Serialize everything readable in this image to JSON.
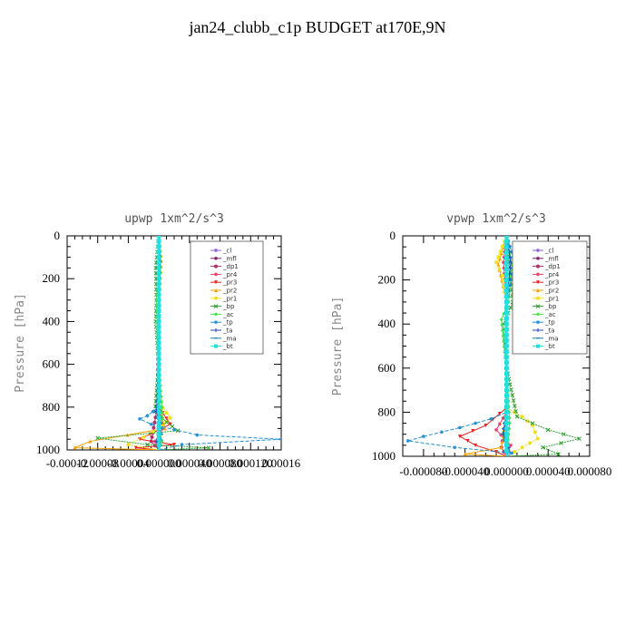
{
  "title": "jan24_clubb_c1p  BUDGET at170E,9N",
  "legend_entries": [
    "_cl",
    "_mfl",
    "_dp1",
    "_pr4",
    "_pr3",
    "_pr2",
    "_pr1",
    "_bp",
    "_ac",
    "_tp",
    "_ta",
    "_ma",
    "_bt"
  ],
  "colors": {
    "_cl": "#8a5fd0",
    "_mfl": "#7a1f6e",
    "_dp1": "#b0306a",
    "_pr4": "#e8406a",
    "_pr3": "#e82020",
    "_pr2": "#f4a000",
    "_pr1": "#f2e020",
    "_bp": "#30a030",
    "_ac": "#40e040",
    "_tp": "#2090d0",
    "_ta": "#2040c0",
    "_ma": "#2080b0",
    "_bt": "#20e0e0"
  },
  "chart_data": [
    {
      "type": "line",
      "title": "upwp   1xm^2/s^3",
      "ylabel": "Pressure [hPa]",
      "xlabel": "",
      "xlim": [
        -0.00012,
        0.00016
      ],
      "ylim": [
        1000,
        0
      ],
      "x_ticks": [
        -0.00012,
        -8e-05,
        -4e-05,
        0.0,
        4e-05,
        8e-05,
        0.00012,
        0.00016
      ],
      "x_tick_labels": [
        "-0.00012",
        "-0.00008",
        "-0.00004",
        "0.000000",
        "0.000040",
        "0.000080",
        "0.000120",
        "0.00016"
      ],
      "y_ticks": [
        0,
        200,
        400,
        600,
        800,
        1000
      ],
      "y_tick_labels": [
        "0",
        "200",
        "400",
        "600",
        "800",
        "1000"
      ],
      "legend_position": "top-right",
      "series": [
        {
          "name": "_cl",
          "points": [
            [
              0,
              0
            ],
            [
              0,
              200
            ],
            [
              0,
              400
            ],
            [
              0,
              600
            ],
            [
              0,
              800
            ],
            [
              0,
              1000
            ]
          ]
        },
        {
          "name": "_mfl",
          "points": [
            [
              0,
              0
            ],
            [
              0,
              200
            ],
            [
              0,
              400
            ],
            [
              0,
              600
            ],
            [
              0,
              800
            ],
            [
              0,
              1000
            ]
          ]
        },
        {
          "name": "_dp1",
          "points": [
            [
              0,
              0
            ],
            [
              0,
              300
            ],
            [
              -2e-06,
              800
            ],
            [
              -8e-06,
              920
            ],
            [
              -1e-05,
              960
            ],
            [
              0,
              1000
            ]
          ]
        },
        {
          "name": "_pr4",
          "points": [
            [
              0,
              0
            ],
            [
              0,
              300
            ],
            [
              0,
              800
            ],
            [
              5e-06,
              900
            ],
            [
              -5e-06,
              960
            ],
            [
              0,
              1000
            ]
          ]
        },
        {
          "name": "_pr3",
          "points": [
            [
              0,
              0
            ],
            [
              0,
              800
            ],
            [
              1.5e-05,
              880
            ],
            [
              -2.5e-05,
              950
            ],
            [
              2e-05,
              975
            ],
            [
              -3e-05,
              990
            ],
            [
              0,
              1000
            ]
          ]
        },
        {
          "name": "_pr2",
          "points": [
            [
              0,
              0
            ],
            [
              1e-06,
              120
            ],
            [
              0,
              300
            ],
            [
              0,
              800
            ],
            [
              8e-06,
              900
            ],
            [
              -9e-05,
              960
            ],
            [
              -0.00011,
              990
            ],
            [
              0,
              1000
            ]
          ]
        },
        {
          "name": "_pr1",
          "points": [
            [
              0,
              0
            ],
            [
              3e-06,
              120
            ],
            [
              0,
              300
            ],
            [
              0,
              780
            ],
            [
              1.5e-05,
              850
            ],
            [
              5e-06,
              890
            ],
            [
              -2e-05,
              940
            ],
            [
              -4e-05,
              975
            ],
            [
              0,
              1000
            ]
          ]
        },
        {
          "name": "_bp",
          "points": [
            [
              0,
              0
            ],
            [
              -4e-06,
              150
            ],
            [
              -3e-06,
              300
            ],
            [
              -4e-06,
              400
            ],
            [
              0,
              600
            ],
            [
              -5e-06,
              820
            ],
            [
              1e-05,
              870
            ],
            [
              2.5e-05,
              910
            ],
            [
              -8e-05,
              945
            ],
            [
              -1.5e-05,
              975
            ],
            [
              6.5e-05,
              990
            ],
            [
              0,
              1000
            ]
          ]
        },
        {
          "name": "_ac",
          "points": [
            [
              0,
              0
            ],
            [
              0,
              200
            ],
            [
              -3e-06,
              300
            ],
            [
              0,
              600
            ],
            [
              5e-06,
              850
            ],
            [
              0,
              900
            ],
            [
              4e-06,
              960
            ],
            [
              0,
              1000
            ]
          ]
        },
        {
          "name": "_tp",
          "points": [
            [
              0,
              0
            ],
            [
              2e-06,
              120
            ],
            [
              0,
              300
            ],
            [
              0,
              800
            ],
            [
              -1.5e-05,
              840
            ],
            [
              -2.5e-05,
              855
            ],
            [
              -1e-05,
              880
            ],
            [
              5e-05,
              930
            ],
            [
              0.00016,
              950
            ],
            [
              3e-05,
              975
            ],
            [
              0,
              1000
            ]
          ]
        },
        {
          "name": "_ta",
          "points": [
            [
              0,
              0
            ],
            [
              1e-06,
              120
            ],
            [
              0,
              300
            ],
            [
              0,
              600
            ],
            [
              -3e-06,
              820
            ],
            [
              2e-06,
              900
            ],
            [
              -3e-06,
              960
            ],
            [
              0,
              1000
            ]
          ]
        },
        {
          "name": "_ma",
          "points": [
            [
              0,
              0
            ],
            [
              0,
              400
            ],
            [
              0,
              800
            ],
            [
              4e-06,
              900
            ],
            [
              2e-06,
              980
            ],
            [
              0,
              1000
            ]
          ]
        },
        {
          "name": "_bt",
          "points": [
            [
              0,
              0
            ],
            [
              0,
              200
            ],
            [
              0,
              600
            ],
            [
              0,
              800
            ],
            [
              0,
              1000
            ]
          ]
        }
      ]
    },
    {
      "type": "line",
      "title": "vpwp   1xm^2/s^3",
      "ylabel": "Pressure [hPa]",
      "xlabel": "",
      "xlim": [
        -0.0001,
        8e-05
      ],
      "ylim": [
        1000,
        0
      ],
      "x_ticks": [
        -8e-05,
        -4e-05,
        0.0,
        4e-05,
        8e-05
      ],
      "x_tick_labels": [
        "-0.000080",
        "-0.000040",
        "0.000000",
        "0.000040",
        "0.000080"
      ],
      "y_ticks": [
        0,
        200,
        400,
        600,
        800,
        1000
      ],
      "y_tick_labels": [
        "0",
        "200",
        "400",
        "600",
        "800",
        "1000"
      ],
      "legend_position": "top-right",
      "series": [
        {
          "name": "_cl",
          "points": [
            [
              0,
              0
            ],
            [
              0,
              200
            ],
            [
              0,
              400
            ],
            [
              0,
              600
            ],
            [
              0,
              800
            ],
            [
              0,
              1000
            ]
          ]
        },
        {
          "name": "_mfl",
          "points": [
            [
              0,
              0
            ],
            [
              0,
              200
            ],
            [
              0,
              400
            ],
            [
              0,
              600
            ],
            [
              0,
              800
            ],
            [
              0,
              1000
            ]
          ]
        },
        {
          "name": "_dp1",
          "points": [
            [
              0,
              0
            ],
            [
              0,
              300
            ],
            [
              0,
              800
            ],
            [
              -3e-06,
              900
            ],
            [
              -5e-06,
              960
            ],
            [
              0,
              1000
            ]
          ]
        },
        {
          "name": "_pr4",
          "points": [
            [
              0,
              0
            ],
            [
              -3e-06,
              120
            ],
            [
              0,
              300
            ],
            [
              0,
              800
            ],
            [
              -1e-05,
              880
            ],
            [
              4e-06,
              950
            ],
            [
              0,
              1000
            ]
          ]
        },
        {
          "name": "_pr3",
          "points": [
            [
              0,
              0
            ],
            [
              0,
              300
            ],
            [
              0,
              780
            ],
            [
              -2e-05,
              860
            ],
            [
              -4.5e-05,
              910
            ],
            [
              -3e-05,
              950
            ],
            [
              -1e-05,
              980
            ],
            [
              0,
              1000
            ]
          ]
        },
        {
          "name": "_pr2",
          "points": [
            [
              0,
              0
            ],
            [
              -8e-06,
              130
            ],
            [
              0,
              300
            ],
            [
              0,
              800
            ],
            [
              -5e-06,
              960
            ],
            [
              -4e-05,
              990
            ],
            [
              0,
              1000
            ]
          ]
        },
        {
          "name": "_pr1",
          "points": [
            [
              0,
              0
            ],
            [
              -1e-05,
              120
            ],
            [
              -4e-06,
              180
            ],
            [
              0,
              300
            ],
            [
              0,
              780
            ],
            [
              1.5e-05,
              820
            ],
            [
              2.5e-05,
              860
            ],
            [
              3e-05,
              920
            ],
            [
              1.5e-05,
              960
            ],
            [
              0,
              1000
            ]
          ]
        },
        {
          "name": "_bp",
          "points": [
            [
              0,
              0
            ],
            [
              3e-06,
              140
            ],
            [
              6e-06,
              300
            ],
            [
              -3e-06,
              400
            ],
            [
              0,
              600
            ],
            [
              1e-05,
              820
            ],
            [
              4e-05,
              880
            ],
            [
              7e-05,
              920
            ],
            [
              3.5e-05,
              960
            ],
            [
              5e-05,
              990
            ],
            [
              0,
              1000
            ]
          ]
        },
        {
          "name": "_ac",
          "points": [
            [
              0,
              0
            ],
            [
              5e-06,
              130
            ],
            [
              2e-06,
              300
            ],
            [
              -5e-06,
              380
            ],
            [
              0,
              600
            ],
            [
              3e-06,
              850
            ],
            [
              0,
              1000
            ]
          ]
        },
        {
          "name": "_tp",
          "points": [
            [
              0,
              0
            ],
            [
              8e-06,
              120
            ],
            [
              4e-06,
              200
            ],
            [
              0,
              300
            ],
            [
              0,
              800
            ],
            [
              -1.5e-05,
              830
            ],
            [
              -4.5e-05,
              870
            ],
            [
              -8e-05,
              910
            ],
            [
              -9.5e-05,
              930
            ],
            [
              -5e-05,
              960
            ],
            [
              5e-06,
              985
            ],
            [
              0,
              1000
            ]
          ]
        },
        {
          "name": "_ta",
          "points": [
            [
              0,
              0
            ],
            [
              4e-06,
              120
            ],
            [
              0,
              300
            ],
            [
              0,
              800
            ],
            [
              -3e-06,
              900
            ],
            [
              2e-06,
              960
            ],
            [
              0,
              1000
            ]
          ]
        },
        {
          "name": "_ma",
          "points": [
            [
              0,
              0
            ],
            [
              0,
              400
            ],
            [
              0,
              800
            ],
            [
              -4e-06,
              900
            ],
            [
              2e-06,
              980
            ],
            [
              0,
              1000
            ]
          ]
        },
        {
          "name": "_bt",
          "points": [
            [
              0,
              0
            ],
            [
              0,
              200
            ],
            [
              0,
              600
            ],
            [
              0,
              800
            ],
            [
              0,
              1000
            ]
          ]
        }
      ]
    }
  ]
}
